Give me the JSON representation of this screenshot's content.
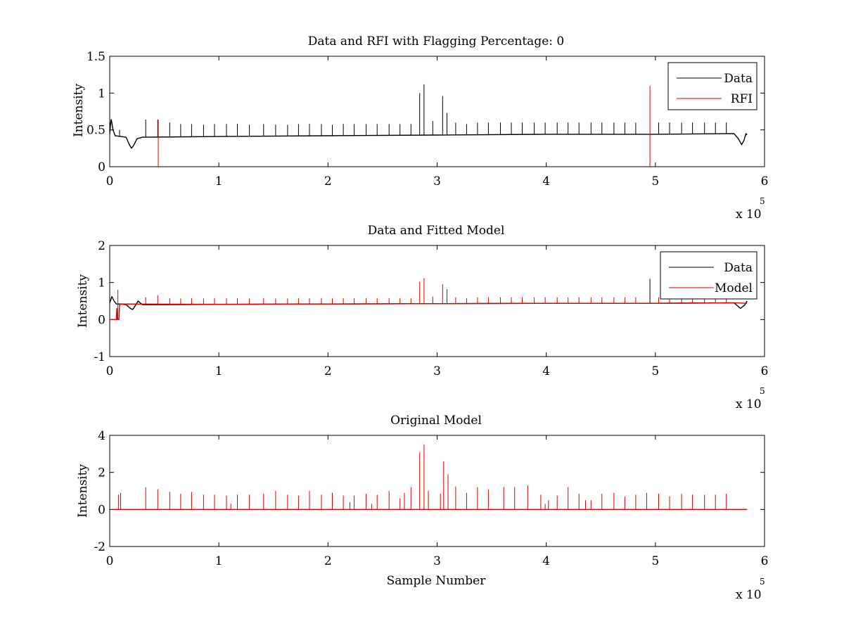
{
  "colors": {
    "data": "#000000",
    "model": "#e00000",
    "axes": "#000000",
    "background": "#ffffff"
  },
  "x_multiplier": {
    "base": "x 10",
    "exponent": "5"
  },
  "chart_data": [
    {
      "type": "line",
      "title": "Data and RFI with Flagging Percentage: 0",
      "xlabel": "",
      "ylabel": "Intensity",
      "xlim": [
        0,
        6
      ],
      "ylim": [
        0,
        1.5
      ],
      "xticks": [
        "0",
        "1",
        "2",
        "3",
        "4",
        "5",
        "6"
      ],
      "yticks": [
        "0",
        "0.5",
        "1",
        "1.5"
      ],
      "legend": {
        "position": "top-right",
        "entries": [
          "Data",
          "RFI"
        ]
      },
      "series": [
        {
          "name": "Data",
          "color": "#000000",
          "baseline": [
            [
              0,
              0.44
            ],
            [
              0.01,
              0.62
            ],
            [
              0.015,
              0.64
            ],
            [
              0.03,
              0.5
            ],
            [
              0.05,
              0.42
            ],
            [
              0.1,
              0.41
            ],
            [
              0.15,
              0.4
            ],
            [
              0.18,
              0.3
            ],
            [
              0.2,
              0.25
            ],
            [
              0.22,
              0.29
            ],
            [
              0.25,
              0.38
            ],
            [
              0.3,
              0.4
            ],
            [
              1,
              0.41
            ],
            [
              2,
              0.42
            ],
            [
              3,
              0.43
            ],
            [
              4,
              0.44
            ],
            [
              5,
              0.44
            ],
            [
              5.72,
              0.45
            ],
            [
              5.76,
              0.38
            ],
            [
              5.79,
              0.3
            ],
            [
              5.81,
              0.35
            ],
            [
              5.83,
              0.45
            ],
            [
              5.84,
              0.43
            ]
          ],
          "spikes": [
            [
              0.09,
              0.5
            ],
            [
              0.33,
              0.64
            ],
            [
              0.44,
              0.64
            ],
            [
              0.55,
              0.6
            ],
            [
              0.65,
              0.58
            ],
            [
              0.75,
              0.58
            ],
            [
              0.86,
              0.57
            ],
            [
              0.96,
              0.58
            ],
            [
              1.07,
              0.58
            ],
            [
              1.17,
              0.58
            ],
            [
              1.28,
              0.57
            ],
            [
              1.41,
              0.58
            ],
            [
              1.52,
              0.57
            ],
            [
              1.63,
              0.57
            ],
            [
              1.73,
              0.58
            ],
            [
              1.83,
              0.58
            ],
            [
              1.94,
              0.58
            ],
            [
              2.04,
              0.57
            ],
            [
              2.14,
              0.58
            ],
            [
              2.24,
              0.58
            ],
            [
              2.35,
              0.58
            ],
            [
              2.45,
              0.58
            ],
            [
              2.56,
              0.58
            ],
            [
              2.66,
              0.58
            ],
            [
              2.76,
              0.58
            ],
            [
              2.84,
              1.0
            ],
            [
              2.88,
              1.12
            ],
            [
              2.96,
              0.62
            ],
            [
              3.05,
              0.96
            ],
            [
              3.09,
              0.73
            ],
            [
              3.17,
              0.6
            ],
            [
              3.27,
              0.58
            ],
            [
              3.37,
              0.6
            ],
            [
              3.47,
              0.6
            ],
            [
              3.58,
              0.6
            ],
            [
              3.68,
              0.6
            ],
            [
              3.78,
              0.6
            ],
            [
              3.89,
              0.6
            ],
            [
              3.99,
              0.6
            ],
            [
              4.1,
              0.6
            ],
            [
              4.2,
              0.6
            ],
            [
              4.3,
              0.6
            ],
            [
              4.41,
              0.6
            ],
            [
              4.51,
              0.6
            ],
            [
              4.62,
              0.6
            ],
            [
              4.72,
              0.6
            ],
            [
              4.82,
              0.6
            ],
            [
              5.03,
              0.6
            ],
            [
              5.13,
              0.6
            ],
            [
              5.24,
              0.6
            ],
            [
              5.34,
              0.6
            ],
            [
              5.45,
              0.6
            ],
            [
              5.55,
              0.6
            ],
            [
              5.65,
              0.6
            ]
          ]
        },
        {
          "name": "RFI",
          "color": "#e00000",
          "spikes": [
            [
              0.445,
              0.64
            ],
            [
              4.95,
              1.1
            ]
          ]
        }
      ]
    },
    {
      "type": "line",
      "title": "Data and Fitted Model",
      "xlabel": "",
      "ylabel": "Intensity",
      "xlim": [
        0,
        6
      ],
      "ylim": [
        -1,
        2
      ],
      "xticks": [
        "0",
        "1",
        "2",
        "3",
        "4",
        "5",
        "6"
      ],
      "yticks": [
        "-1",
        "0",
        "1",
        "2"
      ],
      "legend": {
        "position": "top-right",
        "entries": [
          "Data",
          "Model"
        ]
      },
      "series": [
        {
          "name": "Data",
          "color": "#000000",
          "baseline": [
            [
              0,
              0.45
            ],
            [
              0.02,
              0.62
            ],
            [
              0.04,
              0.5
            ],
            [
              0.06,
              0.42
            ],
            [
              0.1,
              0.42
            ],
            [
              0.15,
              0.4
            ],
            [
              0.19,
              0.3
            ],
            [
              0.21,
              0.27
            ],
            [
              0.24,
              0.4
            ],
            [
              0.26,
              0.5
            ],
            [
              0.3,
              0.4
            ],
            [
              1,
              0.41
            ],
            [
              2,
              0.42
            ],
            [
              3,
              0.43
            ],
            [
              4,
              0.44
            ],
            [
              5,
              0.44
            ],
            [
              5.72,
              0.45
            ],
            [
              5.78,
              0.3
            ],
            [
              5.82,
              0.4
            ],
            [
              5.84,
              0.5
            ]
          ],
          "spikes": [
            [
              4.95,
              1.1
            ]
          ]
        },
        {
          "name": "Model",
          "color": "#e00000",
          "baseline": [
            [
              0,
              0.0
            ],
            [
              0.06,
              0.0
            ],
            [
              0.065,
              0.3
            ],
            [
              0.07,
              0.0
            ],
            [
              0.085,
              0.0
            ],
            [
              0.09,
              0.4
            ],
            [
              0.1,
              0.42
            ],
            [
              1,
              0.41
            ],
            [
              2,
              0.42
            ],
            [
              3,
              0.43
            ],
            [
              4,
              0.44
            ],
            [
              5,
              0.44
            ],
            [
              5.72,
              0.45
            ],
            [
              5.84,
              0.44
            ]
          ],
          "spikes": [
            [
              0.075,
              0.8
            ],
            [
              0.33,
              0.6
            ],
            [
              0.44,
              0.66
            ],
            [
              0.55,
              0.58
            ],
            [
              0.65,
              0.57
            ],
            [
              0.75,
              0.58
            ],
            [
              0.86,
              0.57
            ],
            [
              0.96,
              0.58
            ],
            [
              1.07,
              0.58
            ],
            [
              1.17,
              0.58
            ],
            [
              1.28,
              0.57
            ],
            [
              1.41,
              0.58
            ],
            [
              1.52,
              0.57
            ],
            [
              1.63,
              0.57
            ],
            [
              1.73,
              0.58
            ],
            [
              1.83,
              0.58
            ],
            [
              1.94,
              0.58
            ],
            [
              2.04,
              0.57
            ],
            [
              2.14,
              0.58
            ],
            [
              2.24,
              0.58
            ],
            [
              2.35,
              0.58
            ],
            [
              2.45,
              0.58
            ],
            [
              2.56,
              0.58
            ],
            [
              2.66,
              0.58
            ],
            [
              2.76,
              0.58
            ],
            [
              2.84,
              1.02
            ],
            [
              2.88,
              1.12
            ],
            [
              2.96,
              0.62
            ],
            [
              3.05,
              0.96
            ],
            [
              3.09,
              0.82
            ],
            [
              3.17,
              0.6
            ],
            [
              3.27,
              0.58
            ],
            [
              3.37,
              0.6
            ],
            [
              3.47,
              0.6
            ],
            [
              3.58,
              0.6
            ],
            [
              3.68,
              0.6
            ],
            [
              3.78,
              0.6
            ],
            [
              3.89,
              0.6
            ],
            [
              3.99,
              0.6
            ],
            [
              4.1,
              0.6
            ],
            [
              4.2,
              0.6
            ],
            [
              4.3,
              0.6
            ],
            [
              4.41,
              0.6
            ],
            [
              4.51,
              0.6
            ],
            [
              4.62,
              0.6
            ],
            [
              4.72,
              0.6
            ],
            [
              4.82,
              0.6
            ],
            [
              5.03,
              0.6
            ],
            [
              5.13,
              0.6
            ],
            [
              5.24,
              0.6
            ],
            [
              5.34,
              0.6
            ],
            [
              5.45,
              0.6
            ],
            [
              5.55,
              0.6
            ],
            [
              5.65,
              0.6
            ]
          ]
        }
      ]
    },
    {
      "type": "line",
      "title": "Original Model",
      "xlabel": "Sample Number",
      "ylabel": "Intensity",
      "xlim": [
        0,
        6
      ],
      "ylim": [
        -2,
        4
      ],
      "xticks": [
        "0",
        "1",
        "2",
        "3",
        "4",
        "5",
        "6"
      ],
      "yticks": [
        "-2",
        "0",
        "2",
        "4"
      ],
      "legend": null,
      "series": [
        {
          "name": "",
          "color": "#e00000",
          "baseline": [
            [
              0.02,
              0
            ],
            [
              5.84,
              0
            ]
          ],
          "spikes": [
            [
              0.08,
              0.8
            ],
            [
              0.1,
              0.9
            ],
            [
              0.33,
              1.2
            ],
            [
              0.44,
              1.1
            ],
            [
              0.55,
              0.95
            ],
            [
              0.65,
              0.85
            ],
            [
              0.75,
              0.95
            ],
            [
              0.86,
              0.8
            ],
            [
              0.96,
              0.8
            ],
            [
              1.07,
              0.75
            ],
            [
              1.11,
              0.3
            ],
            [
              1.17,
              0.8
            ],
            [
              1.28,
              0.8
            ],
            [
              1.41,
              0.85
            ],
            [
              1.52,
              1.0
            ],
            [
              1.63,
              0.8
            ],
            [
              1.73,
              0.75
            ],
            [
              1.83,
              1.0
            ],
            [
              1.94,
              0.8
            ],
            [
              2.04,
              0.9
            ],
            [
              2.14,
              0.75
            ],
            [
              2.2,
              0.4
            ],
            [
              2.24,
              0.75
            ],
            [
              2.35,
              0.85
            ],
            [
              2.4,
              0.3
            ],
            [
              2.45,
              0.8
            ],
            [
              2.56,
              1.0
            ],
            [
              2.66,
              0.6
            ],
            [
              2.7,
              0.9
            ],
            [
              2.76,
              1.2
            ],
            [
              2.84,
              3.1
            ],
            [
              2.88,
              3.5
            ],
            [
              2.92,
              1.0
            ],
            [
              3.03,
              0.85
            ],
            [
              3.06,
              2.6
            ],
            [
              3.1,
              1.9
            ],
            [
              3.17,
              1.25
            ],
            [
              3.27,
              0.9
            ],
            [
              3.37,
              1.2
            ],
            [
              3.47,
              1.1
            ],
            [
              3.61,
              1.2
            ],
            [
              3.71,
              1.2
            ],
            [
              3.83,
              1.3
            ],
            [
              3.95,
              0.8
            ],
            [
              3.99,
              0.3
            ],
            [
              4.02,
              0.5
            ],
            [
              4.1,
              0.75
            ],
            [
              4.2,
              1.2
            ],
            [
              4.3,
              0.85
            ],
            [
              4.36,
              0.5
            ],
            [
              4.41,
              0.5
            ],
            [
              4.51,
              0.85
            ],
            [
              4.62,
              0.9
            ],
            [
              4.72,
              0.7
            ],
            [
              4.82,
              0.8
            ],
            [
              4.92,
              0.9
            ],
            [
              5.03,
              0.85
            ],
            [
              5.13,
              0.7
            ],
            [
              5.24,
              0.85
            ],
            [
              5.34,
              0.8
            ],
            [
              5.45,
              0.8
            ],
            [
              5.55,
              0.8
            ],
            [
              5.65,
              0.85
            ]
          ]
        }
      ]
    }
  ]
}
